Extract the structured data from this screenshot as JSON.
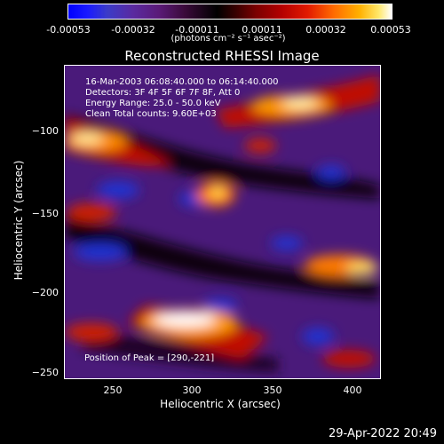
{
  "colorbar": {
    "ticks": [
      "-0.00053",
      "-0.00032",
      "-0.00011",
      "0.00011",
      "0.00032",
      "0.00053"
    ],
    "units": "(photons cm⁻² s⁻¹ asec⁻²)"
  },
  "title": "Reconstructed RHESSI Image",
  "info": {
    "time": "16-Mar-2003 06:08:40.000 to 06:14:40.000",
    "detectors": "Detectors: 3F 4F 5F 6F 7F 8F, Att 0",
    "energy": "Energy Range: 25.0 - 50.0 keV",
    "clean": "Clean     Total counts: 9.60E+03"
  },
  "peak": "Position of Peak = [290,-221]",
  "axes": {
    "xlabel": "Heliocentric X (arcsec)",
    "ylabel": "Heliocentric Y (arcsec)",
    "xticks": [
      "250",
      "300",
      "350",
      "400"
    ],
    "yticks": [
      "−100",
      "−150",
      "−200",
      "−250"
    ]
  },
  "timestamp": "29-Apr-2022 20:49"
}
